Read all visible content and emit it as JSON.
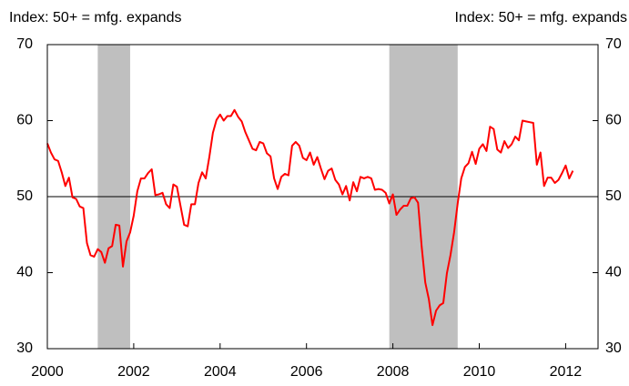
{
  "chart_data": {
    "type": "line",
    "ylabel": "Index: 50+ = mfg. expands",
    "y2label": "Index: 50+ = mfg. expands",
    "x": [
      2000,
      2000.083,
      2000.167,
      2000.25,
      2000.333,
      2000.417,
      2000.5,
      2000.583,
      2000.667,
      2000.75,
      2000.833,
      2000.917,
      2001,
      2001.083,
      2001.167,
      2001.25,
      2001.333,
      2001.417,
      2001.5,
      2001.583,
      2001.667,
      2001.75,
      2001.833,
      2001.917,
      2002,
      2002.083,
      2002.167,
      2002.25,
      2002.333,
      2002.417,
      2002.5,
      2002.583,
      2002.667,
      2002.75,
      2002.833,
      2002.917,
      2003,
      2003.083,
      2003.167,
      2003.25,
      2003.333,
      2003.417,
      2003.5,
      2003.583,
      2003.667,
      2003.75,
      2003.833,
      2003.917,
      2004,
      2004.083,
      2004.167,
      2004.25,
      2004.333,
      2004.417,
      2004.5,
      2004.583,
      2004.667,
      2004.75,
      2004.833,
      2004.917,
      2005,
      2005.083,
      2005.167,
      2005.25,
      2005.333,
      2005.417,
      2005.5,
      2005.583,
      2005.667,
      2005.75,
      2005.833,
      2005.917,
      2006,
      2006.083,
      2006.167,
      2006.25,
      2006.333,
      2006.417,
      2006.5,
      2006.583,
      2006.667,
      2006.75,
      2006.833,
      2006.917,
      2007,
      2007.083,
      2007.167,
      2007.25,
      2007.333,
      2007.417,
      2007.5,
      2007.583,
      2007.667,
      2007.75,
      2007.833,
      2007.917,
      2008,
      2008.083,
      2008.167,
      2008.25,
      2008.333,
      2008.417,
      2008.5,
      2008.583,
      2008.667,
      2008.75,
      2008.833,
      2008.917,
      2009,
      2009.083,
      2009.167,
      2009.25,
      2009.333,
      2009.417,
      2009.5,
      2009.583,
      2009.667,
      2009.75,
      2009.833,
      2009.917,
      2010,
      2010.083,
      2010.167,
      2010.25,
      2010.333,
      2010.417,
      2010.5,
      2010.583,
      2010.667,
      2010.75,
      2010.833,
      2010.917,
      2011,
      2011.083,
      2011.167,
      2011.25,
      2011.333,
      2011.417,
      2011.5,
      2011.583,
      2011.667,
      2011.75,
      2011.833,
      2011.917,
      2012,
      2012.083,
      2012.167
    ],
    "values": [
      57.0,
      55.8,
      54.9,
      54.7,
      53.2,
      51.4,
      52.5,
      49.9,
      49.7,
      48.7,
      48.5,
      43.9,
      42.3,
      42.1,
      43.1,
      42.7,
      41.3,
      43.2,
      43.5,
      46.3,
      46.2,
      40.8,
      44.1,
      45.3,
      47.5,
      50.7,
      52.4,
      52.4,
      53.1,
      53.6,
      50.2,
      50.3,
      50.5,
      49.0,
      48.5,
      51.6,
      51.3,
      48.8,
      46.3,
      46.1,
      49.0,
      49.0,
      51.8,
      53.2,
      52.4,
      55.2,
      58.4,
      60.1,
      60.8,
      60.0,
      60.6,
      60.6,
      61.4,
      60.5,
      59.9,
      58.5,
      57.4,
      56.3,
      56.1,
      57.2,
      57.0,
      55.7,
      55.3,
      52.4,
      51.0,
      52.6,
      53.0,
      52.8,
      56.7,
      57.2,
      56.7,
      55.1,
      54.8,
      55.8,
      54.2,
      55.2,
      53.7,
      52.3,
      53.4,
      53.7,
      52.2,
      51.6,
      50.3,
      51.4,
      49.5,
      51.9,
      50.7,
      52.6,
      52.4,
      52.6,
      52.4,
      50.9,
      51.0,
      50.9,
      50.5,
      49.1,
      50.3,
      47.6,
      48.3,
      48.8,
      48.8,
      49.8,
      49.9,
      49.2,
      43.4,
      38.7,
      36.5,
      33.1,
      35.0,
      35.7,
      36.0,
      39.9,
      42.3,
      45.3,
      49.1,
      52.4,
      53.9,
      54.4,
      55.9,
      54.3,
      56.3,
      56.9,
      56.0,
      59.2,
      58.9,
      56.2,
      55.8,
      57.3,
      56.4,
      56.9,
      57.9,
      57.4,
      60.0,
      59.9,
      59.8,
      59.7,
      54.2,
      55.8,
      51.4,
      52.5,
      52.5,
      51.8,
      52.2,
      53.1,
      54.1,
      52.4,
      53.4
    ],
    "color": "#ff0000",
    "bands": [
      [
        2001.167,
        2001.917
      ],
      [
        2007.917,
        2009.5
      ]
    ],
    "band_color": "#bfbfbf",
    "reference_line": 50,
    "xlim": [
      2000,
      2012.75
    ],
    "xticks": [
      2000,
      2002,
      2004,
      2006,
      2008,
      2010,
      2012
    ],
    "ylim": [
      30,
      70
    ],
    "yticks": [
      30,
      40,
      50,
      60,
      70
    ],
    "y2lim": [
      30,
      70
    ],
    "y2ticks": [
      30,
      40,
      50,
      60,
      70
    ]
  }
}
